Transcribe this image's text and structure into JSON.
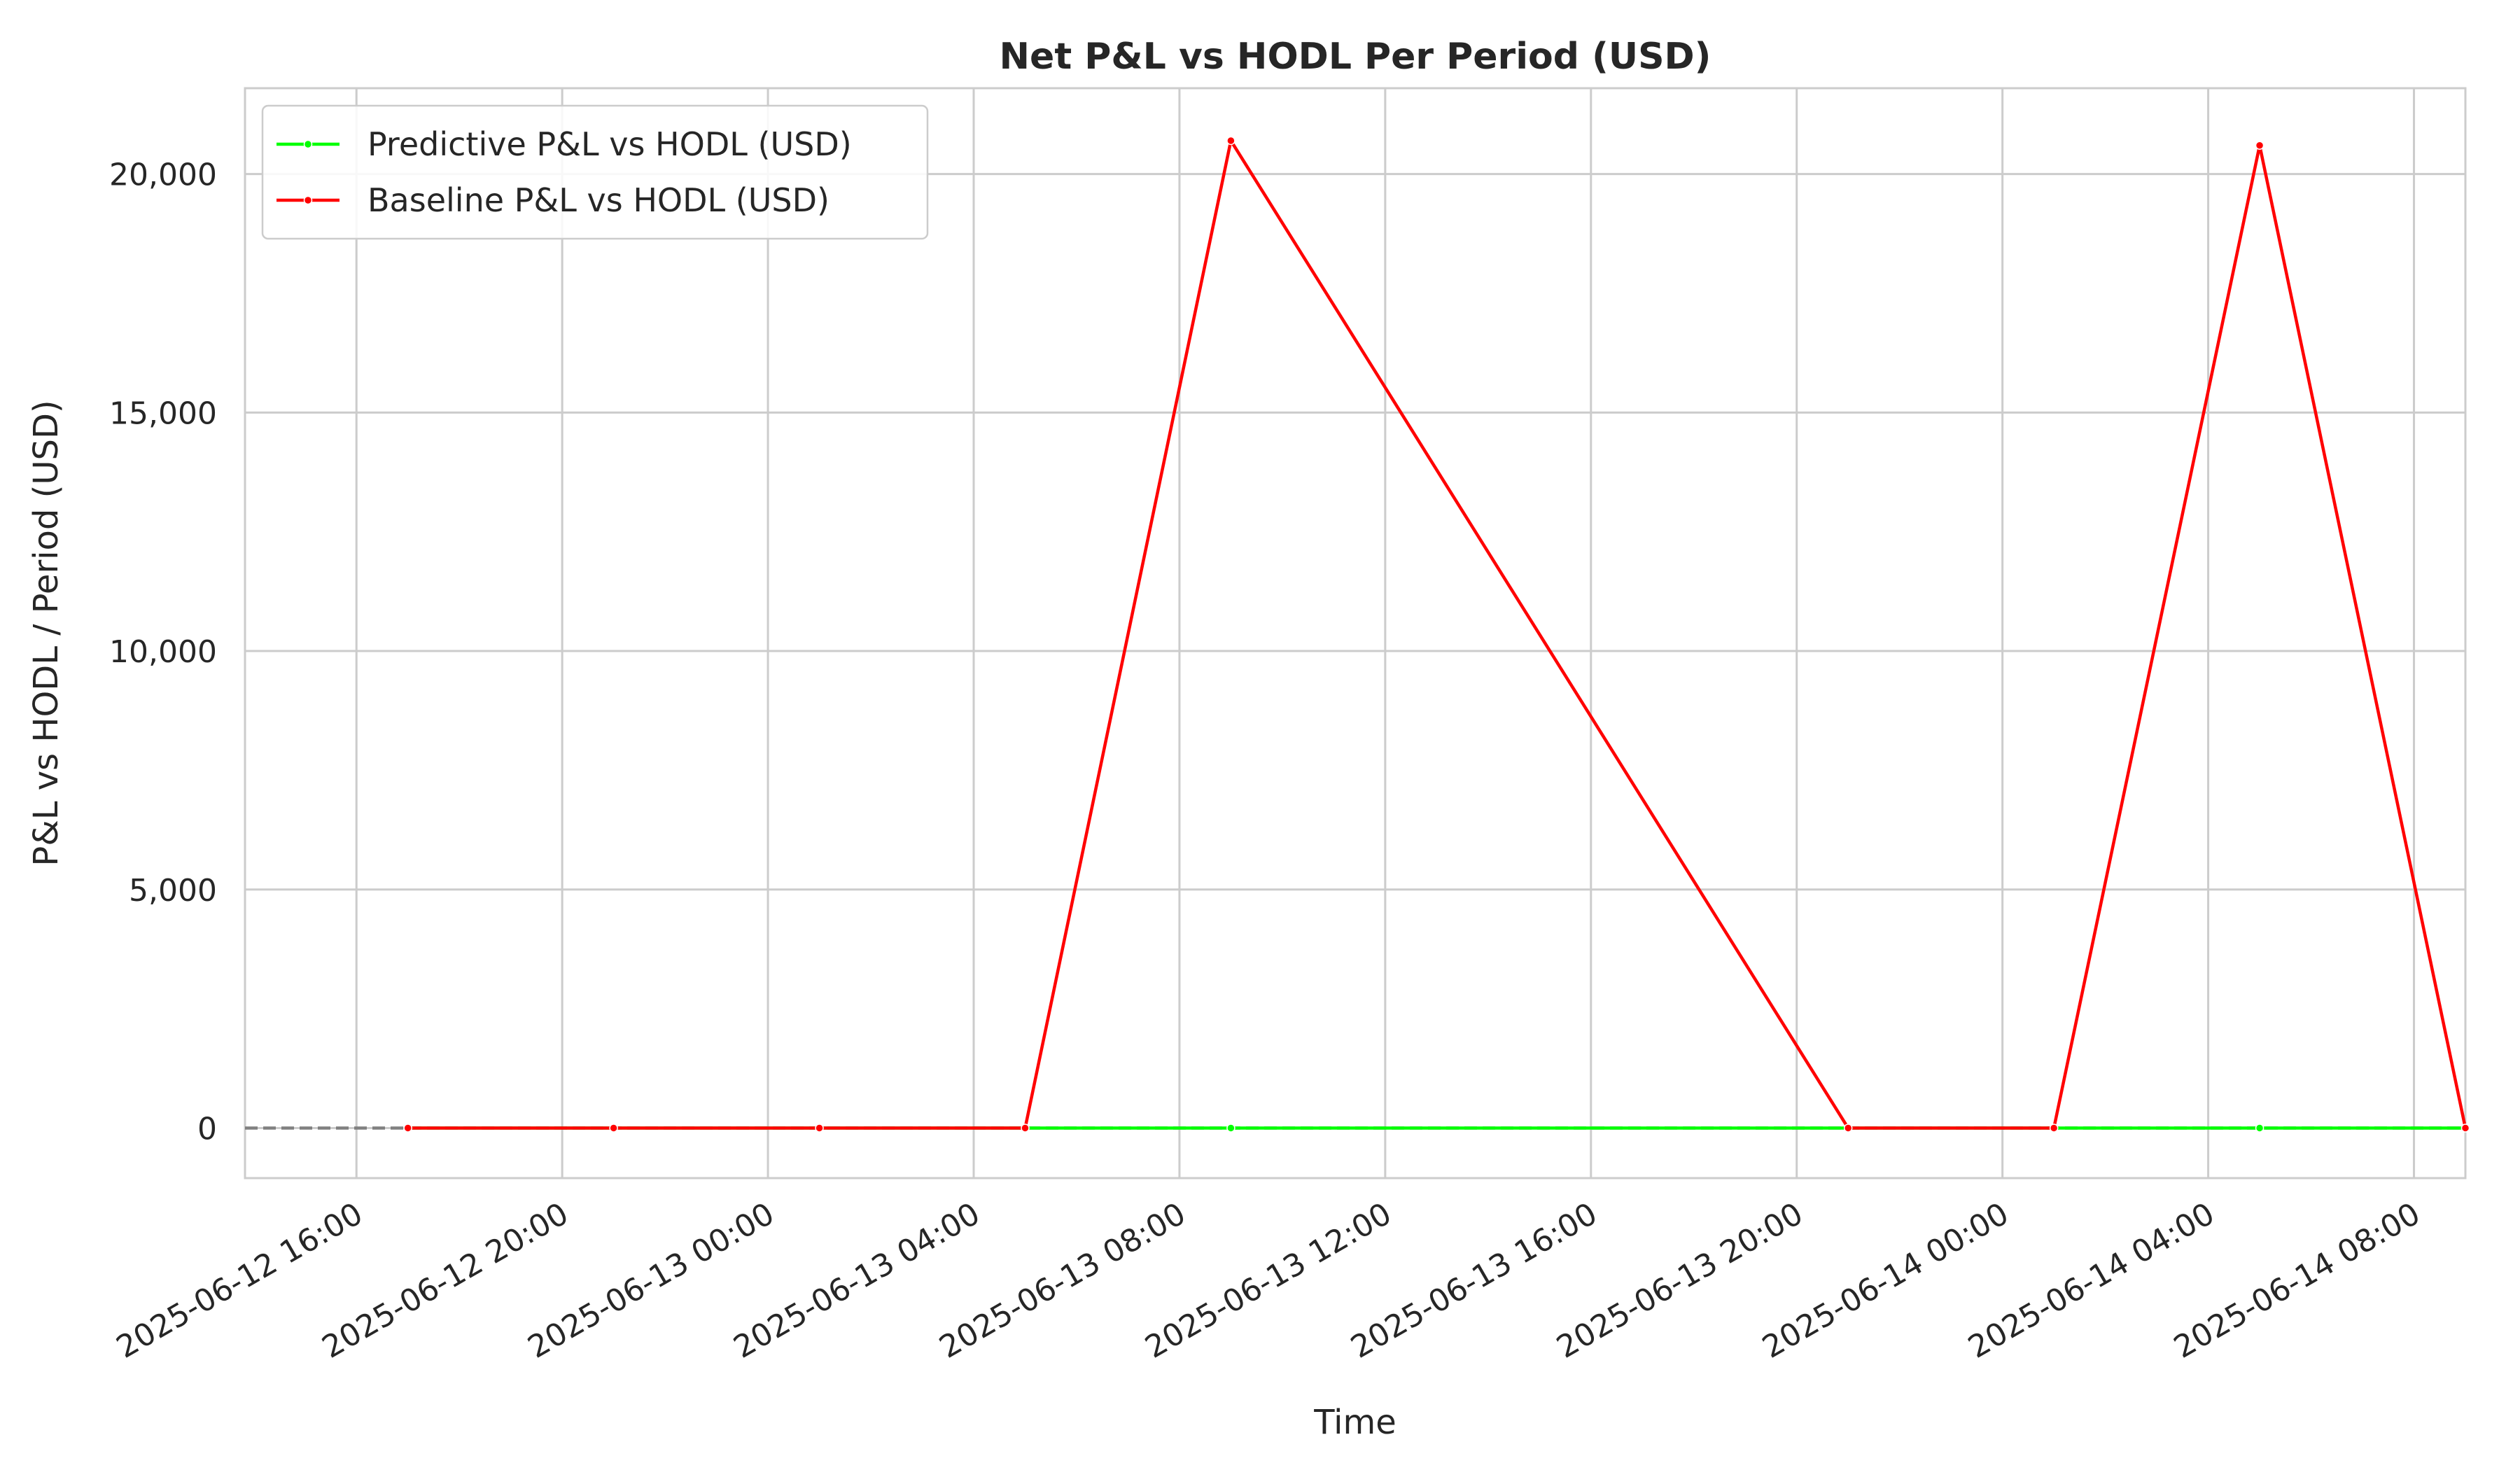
{
  "chart_data": {
    "type": "line",
    "title": "Net P&L vs HODL Per Period (USD)",
    "xlabel": "Time",
    "ylabel": "P&L vs HODL / Period (USD)",
    "ylim": [
      -1050,
      21800
    ],
    "xlim": [
      "2025-06-12 13:50",
      "2025-06-14 09:00"
    ],
    "yticks": [
      0,
      5000,
      10000,
      15000,
      20000
    ],
    "ytick_labels": [
      "0",
      "5,000",
      "10,000",
      "15,000",
      "20,000"
    ],
    "xticks": [
      "2025-06-12 16:00",
      "2025-06-12 20:00",
      "2025-06-13 00:00",
      "2025-06-13 04:00",
      "2025-06-13 08:00",
      "2025-06-13 12:00",
      "2025-06-13 16:00",
      "2025-06-13 20:00",
      "2025-06-14 00:00",
      "2025-06-14 04:00",
      "2025-06-14 08:00"
    ],
    "grid": true,
    "legend_position": "top-left",
    "zero_line": {
      "y": 0,
      "color": "#808080",
      "style": "dashed"
    },
    "series": [
      {
        "name": "Predictive P&L vs HODL (USD)",
        "color": "#00ff00",
        "x": [
          "2025-06-12 17:00",
          "2025-06-12 21:00",
          "2025-06-13 01:00",
          "2025-06-13 05:00",
          "2025-06-13 09:00",
          "2025-06-13 21:00",
          "2025-06-14 01:00",
          "2025-06-14 05:00",
          "2025-06-14 09:00"
        ],
        "y": [
          0,
          0,
          0,
          0,
          0,
          0,
          0,
          0,
          0
        ]
      },
      {
        "name": "Baseline P&L vs HODL (USD)",
        "color": "#ff0000",
        "x": [
          "2025-06-12 17:00",
          "2025-06-12 21:00",
          "2025-06-13 01:00",
          "2025-06-13 05:00",
          "2025-06-13 09:00",
          "2025-06-13 21:00",
          "2025-06-14 01:00",
          "2025-06-14 05:00",
          "2025-06-14 09:00"
        ],
        "y": [
          0,
          0,
          0,
          0,
          20700,
          0,
          0,
          20600,
          0
        ]
      }
    ]
  }
}
